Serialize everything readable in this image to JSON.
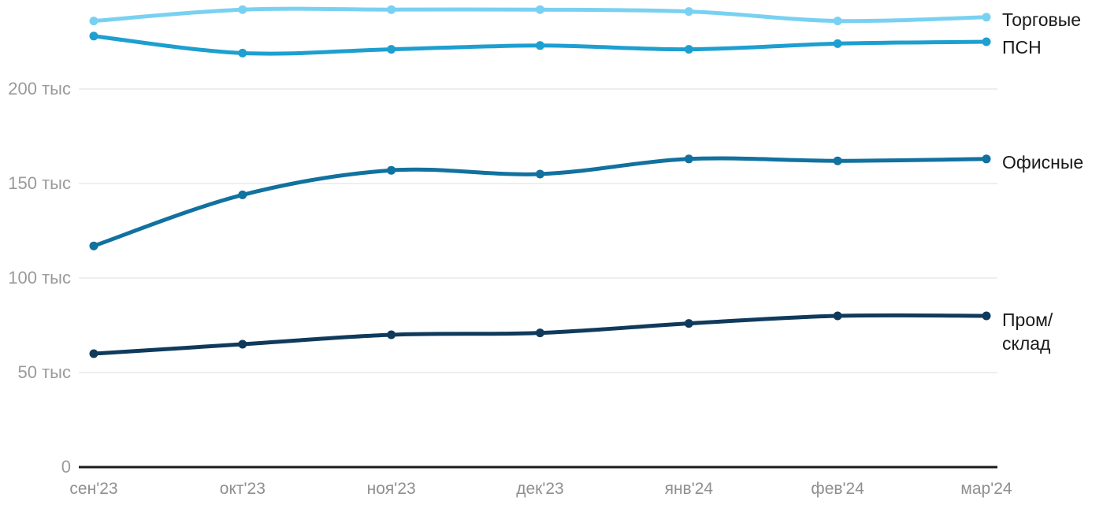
{
  "chart_data": {
    "type": "line",
    "unit": "тыс",
    "x": [
      "сен'23",
      "окт'23",
      "ноя'23",
      "дек'23",
      "янв'24",
      "фев'24",
      "мар'24"
    ],
    "series": [
      {
        "name": "Торговые",
        "color": "#79d1f2",
        "values": [
          236,
          242,
          242,
          242,
          241,
          236,
          238
        ]
      },
      {
        "name": "ПСН",
        "color": "#1d9fd0",
        "values": [
          228,
          219,
          221,
          223,
          221,
          224,
          225
        ]
      },
      {
        "name": "Офисные",
        "color": "#11719f",
        "values": [
          117,
          144,
          157,
          155,
          163,
          162,
          163
        ]
      },
      {
        "name": "Пром/склад",
        "color": "#103a5c",
        "values": [
          60,
          65,
          70,
          71,
          76,
          80,
          80
        ]
      }
    ],
    "y_ticks": [
      {
        "value": 200,
        "label": "200 тыс"
      },
      {
        "value": 150,
        "label": "150 тыс"
      },
      {
        "value": 100,
        "label": "100 тыс"
      },
      {
        "value": 50,
        "label": "50 тыс"
      },
      {
        "value": 0,
        "label": "0"
      }
    ],
    "ylim": [
      0,
      250
    ],
    "grid": "horizontal",
    "legend_position": "right"
  },
  "legend": {
    "items": [
      "Торговые",
      "ПСН",
      "Офисные",
      "Пром/\nсклад"
    ]
  },
  "colors": {
    "background": "#ffffff",
    "gridline": "#e8e8e8",
    "zero_axis": "#1a1a1a",
    "y_tick_label": "#9a9a9a",
    "x_tick_label": "#8f8f8f",
    "legend_text": "#1a1a1a"
  }
}
